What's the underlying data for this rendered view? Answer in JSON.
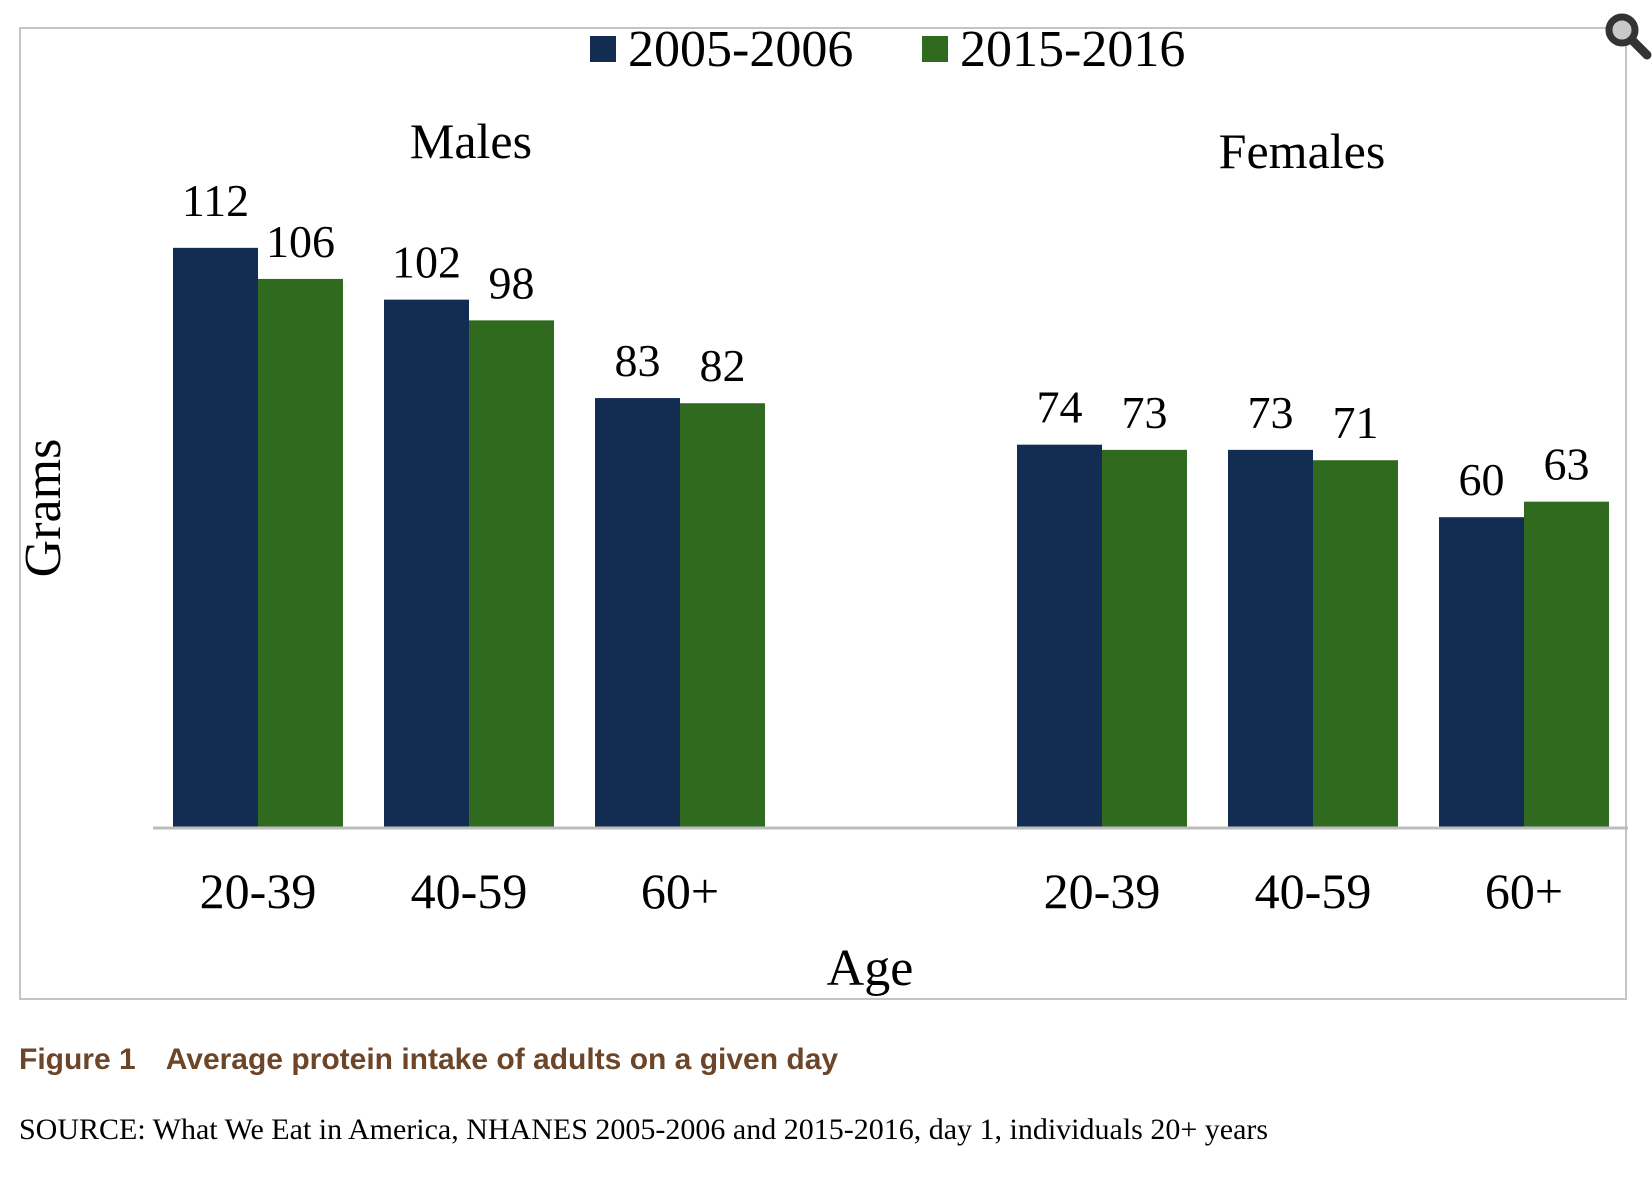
{
  "chart_data": {
    "type": "bar",
    "title": "",
    "xlabel": "Age",
    "ylabel": "Grams",
    "legend": {
      "position": "top"
    },
    "grid": false,
    "groups": [
      {
        "label": "Males",
        "categories": [
          "20-39",
          "40-59",
          "60+"
        ]
      },
      {
        "label": "Females",
        "categories": [
          "20-39",
          "40-59",
          "60+"
        ]
      }
    ],
    "series": [
      {
        "name": "2005-2006",
        "color": "#132d52",
        "values": [
          [
            112,
            102,
            83
          ],
          [
            74,
            73,
            60
          ]
        ]
      },
      {
        "name": "2015-2016",
        "color": "#2f6a1e",
        "values": [
          [
            106,
            98,
            82
          ],
          [
            73,
            71,
            63
          ]
        ]
      }
    ]
  },
  "caption": {
    "label": "Figure 1",
    "text": "Average protein intake of adults on a given day",
    "color": "#6d4528"
  },
  "source": "SOURCE: What We Eat in America, NHANES 2005-2006 and 2015-2016, day 1, individuals 20+ years",
  "icons": {
    "zoom": "magnifier-icon"
  }
}
